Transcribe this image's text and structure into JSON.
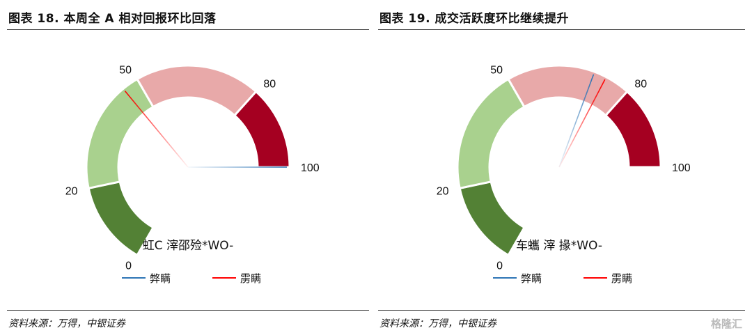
{
  "chart_data": [
    {
      "type": "gauge",
      "title": "图表 18. 本周全 A 相对回报环比回落",
      "source": "资料来源：万得，中银证券",
      "center_label": "虹C  滓邵殓*WO-",
      "scale": {
        "min": 0,
        "max": 100,
        "tick_labels": [
          "0",
          "20",
          "50",
          "80",
          "100"
        ]
      },
      "bands": [
        {
          "from": 0,
          "to": 20,
          "color": "#538135"
        },
        {
          "from": 20,
          "to": 50,
          "color": "#a9d18e"
        },
        {
          "from": 50,
          "to": 80,
          "color": "#e8a9a9"
        },
        {
          "from": 80,
          "to": 100,
          "color": "#a50021"
        }
      ],
      "series": [
        {
          "name": "弊瞒",
          "value": 100,
          "color": "#2e75b6"
        },
        {
          "name": "雳瞒",
          "value": 46,
          "color": "#ff0000"
        }
      ]
    },
    {
      "type": "gauge",
      "title": "图表 19. 成交活跃度环比继续提升",
      "source": "资料来源：万得，中银证券",
      "center_label": "车蠵   滓       掾*WO-",
      "scale": {
        "min": 0,
        "max": 100,
        "tick_labels": [
          "0",
          "20",
          "50",
          "80",
          "100"
        ]
      },
      "bands": [
        {
          "from": 0,
          "to": 20,
          "color": "#538135"
        },
        {
          "from": 20,
          "to": 50,
          "color": "#a9d18e"
        },
        {
          "from": 50,
          "to": 80,
          "color": "#e8a9a9"
        },
        {
          "from": 80,
          "to": 100,
          "color": "#a50021"
        }
      ],
      "series": [
        {
          "name": "弊瞒",
          "value": 71,
          "color": "#2e75b6"
        },
        {
          "name": "雳瞒",
          "value": 74,
          "color": "#ff0000"
        }
      ]
    }
  ],
  "watermark": "格隆汇"
}
